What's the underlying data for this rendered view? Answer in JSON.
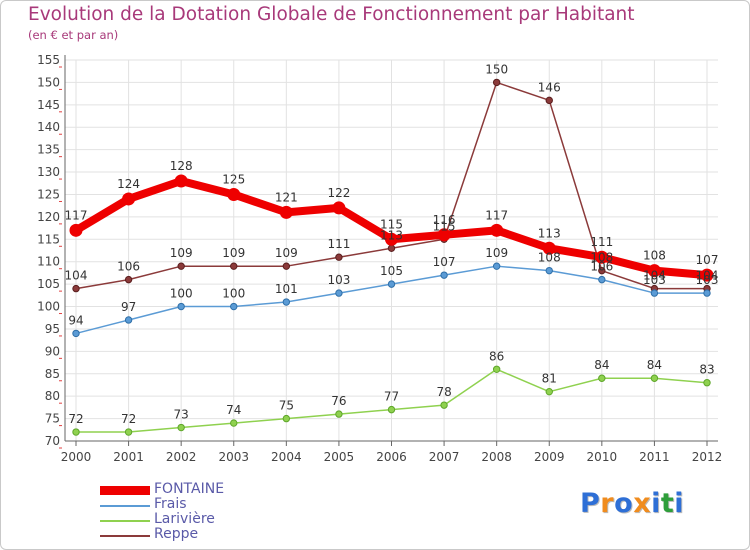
{
  "title": "Evolution de la Dotation Globale de Fonctionnement par Habitant",
  "subtitle": "(en € et par an)",
  "brand": {
    "letters": [
      "P",
      "r",
      "o",
      "x",
      "i",
      "t",
      "i"
    ],
    "colors": [
      "#2e6fd6",
      "#f08c1e",
      "#2e6fd6",
      "#f08c1e",
      "#2e6fd6",
      "#2e9e3a",
      "#2e6fd6"
    ]
  },
  "chart_data": {
    "type": "line",
    "title": "Evolution de la Dotation Globale de Fonctionnement par Habitant",
    "subtitle": "(en € et par an)",
    "xlabel": "",
    "ylabel": "",
    "x": [
      "2000",
      "2001",
      "2002",
      "2003",
      "2004",
      "2005",
      "2006",
      "2007",
      "2008",
      "2009",
      "2010",
      "2011",
      "2012"
    ],
    "ylim": [
      70,
      155
    ],
    "yticks": [
      70,
      75,
      80,
      85,
      90,
      95,
      100,
      105,
      110,
      115,
      120,
      125,
      130,
      135,
      140,
      145,
      150,
      155
    ],
    "grid": true,
    "legend_position": "bottom-left",
    "series": [
      {
        "name": "Reppe",
        "color": "#8b3a3a",
        "values": [
          104,
          106,
          109,
          109,
          109,
          111,
          113,
          115,
          150,
          146,
          108,
          104,
          104
        ],
        "labels": [
          "104",
          "106",
          "109",
          "109",
          "109",
          "111",
          "113",
          "115",
          "150",
          "146",
          "108",
          "104",
          "104"
        ]
      },
      {
        "name": "Frais",
        "color": "#5b9bd5",
        "values": [
          94,
          97,
          100,
          100,
          101,
          103,
          105,
          107,
          109,
          108,
          106,
          103,
          103
        ],
        "labels": [
          "94",
          "97",
          "100",
          "100",
          "101",
          "103",
          "105",
          "107",
          "109",
          "108",
          "106",
          "103",
          "103"
        ]
      },
      {
        "name": "Larivière",
        "color": "#8fd14f",
        "values": [
          72,
          72,
          73,
          74,
          75,
          76,
          77,
          78,
          86,
          81,
          84,
          84,
          83
        ],
        "labels": [
          "72",
          "72",
          "73",
          "74",
          "75",
          "76",
          "77",
          "78",
          "86",
          "81",
          "84",
          "84",
          "83"
        ]
      },
      {
        "name": "FONTAINE",
        "color": "#ee0000",
        "values": [
          117,
          124,
          128,
          125,
          121,
          122,
          115,
          116,
          117,
          113,
          111,
          108,
          107
        ],
        "labels": [
          "117",
          "124",
          "128",
          "125",
          "121",
          "122",
          "115",
          "116",
          "117",
          "113",
          "111",
          "108",
          "107"
        ]
      }
    ],
    "legend": [
      "FONTAINE",
      "Frais",
      "Larivière",
      "Reppe"
    ]
  }
}
